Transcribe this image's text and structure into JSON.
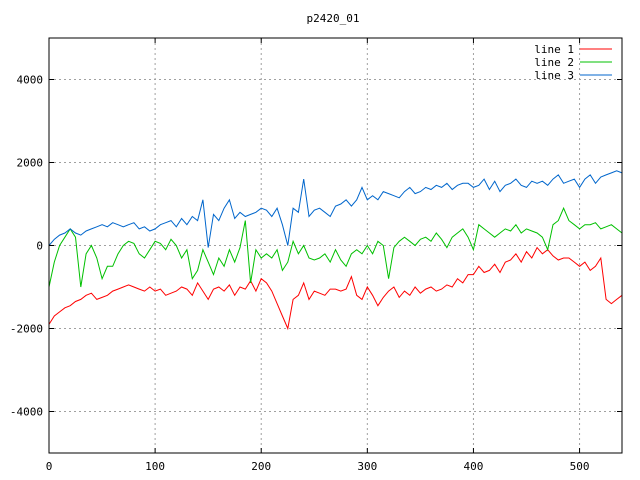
{
  "chart_data": {
    "type": "line",
    "title": "p2420_01",
    "xlabel": "",
    "ylabel": "",
    "xlim": [
      0,
      540
    ],
    "ylim": [
      -5000,
      5000
    ],
    "x_ticks": [
      0,
      100,
      200,
      300,
      400,
      500
    ],
    "y_ticks": [
      -4000,
      -2000,
      0,
      2000,
      4000
    ],
    "grid": true,
    "legend_position": "top-right",
    "series": [
      {
        "name": "line 1",
        "color": "#ff0000",
        "x": [
          0,
          5,
          10,
          15,
          20,
          25,
          30,
          35,
          40,
          45,
          50,
          55,
          60,
          65,
          70,
          75,
          80,
          85,
          90,
          95,
          100,
          105,
          110,
          115,
          120,
          125,
          130,
          135,
          140,
          145,
          150,
          155,
          160,
          165,
          170,
          175,
          180,
          185,
          190,
          195,
          200,
          205,
          210,
          215,
          220,
          225,
          230,
          235,
          240,
          245,
          250,
          255,
          260,
          265,
          270,
          275,
          280,
          285,
          290,
          295,
          300,
          305,
          310,
          315,
          320,
          325,
          330,
          335,
          340,
          345,
          350,
          355,
          360,
          365,
          370,
          375,
          380,
          385,
          390,
          395,
          400,
          405,
          410,
          415,
          420,
          425,
          430,
          435,
          440,
          445,
          450,
          455,
          460,
          465,
          470,
          475,
          480,
          485,
          490,
          495,
          500,
          505,
          510,
          515,
          520,
          525,
          530,
          535,
          540
        ],
        "y": [
          -1900,
          -1700,
          -1600,
          -1500,
          -1450,
          -1350,
          -1300,
          -1200,
          -1150,
          -1300,
          -1250,
          -1200,
          -1100,
          -1050,
          -1000,
          -950,
          -1000,
          -1050,
          -1100,
          -1000,
          -1100,
          -1050,
          -1200,
          -1150,
          -1100,
          -1000,
          -1050,
          -1200,
          -900,
          -1100,
          -1300,
          -1050,
          -1000,
          -1100,
          -950,
          -1200,
          -1000,
          -1050,
          -850,
          -1100,
          -800,
          -900,
          -1100,
          -1400,
          -1700,
          -2000,
          -1300,
          -1200,
          -900,
          -1300,
          -1100,
          -1150,
          -1200,
          -1050,
          -1050,
          -1100,
          -1050,
          -750,
          -1200,
          -1300,
          -1000,
          -1200,
          -1450,
          -1250,
          -1100,
          -1000,
          -1250,
          -1100,
          -1200,
          -1000,
          -1150,
          -1050,
          -1000,
          -1100,
          -1050,
          -950,
          -1000,
          -800,
          -900,
          -700,
          -700,
          -500,
          -650,
          -600,
          -450,
          -650,
          -400,
          -350,
          -200,
          -400,
          -150,
          -300,
          -50,
          -200,
          -100,
          -250,
          -350,
          -300,
          -300,
          -400,
          -500,
          -400,
          -600,
          -500,
          -300,
          -1300,
          -1400,
          -1300,
          -1200
        ]
      },
      {
        "name": "line 2",
        "color": "#00c000",
        "x": [
          0,
          5,
          10,
          15,
          20,
          25,
          30,
          35,
          40,
          45,
          50,
          55,
          60,
          65,
          70,
          75,
          80,
          85,
          90,
          95,
          100,
          105,
          110,
          115,
          120,
          125,
          130,
          135,
          140,
          145,
          150,
          155,
          160,
          165,
          170,
          175,
          180,
          185,
          190,
          195,
          200,
          205,
          210,
          215,
          220,
          225,
          230,
          235,
          240,
          245,
          250,
          255,
          260,
          265,
          270,
          275,
          280,
          285,
          290,
          295,
          300,
          305,
          310,
          315,
          320,
          325,
          330,
          335,
          340,
          345,
          350,
          355,
          360,
          365,
          370,
          375,
          380,
          385,
          390,
          395,
          400,
          405,
          410,
          415,
          420,
          425,
          430,
          435,
          440,
          445,
          450,
          455,
          460,
          465,
          470,
          475,
          480,
          485,
          490,
          495,
          500,
          505,
          510,
          515,
          520,
          525,
          530,
          535,
          540
        ],
        "y": [
          -1000,
          -400,
          0,
          200,
          400,
          200,
          -1000,
          -200,
          0,
          -300,
          -800,
          -500,
          -500,
          -200,
          0,
          100,
          50,
          -200,
          -300,
          -100,
          100,
          50,
          -100,
          150,
          0,
          -300,
          -100,
          -800,
          -600,
          -100,
          -400,
          -700,
          -300,
          -500,
          -100,
          -400,
          -50,
          600,
          -900,
          -100,
          -300,
          -200,
          -300,
          -100,
          -600,
          -400,
          100,
          -200,
          0,
          -300,
          -350,
          -300,
          -200,
          -400,
          -100,
          -350,
          -500,
          -200,
          -100,
          -200,
          0,
          -200,
          100,
          0,
          -800,
          -50,
          100,
          200,
          100,
          0,
          150,
          200,
          100,
          300,
          150,
          -50,
          200,
          300,
          400,
          200,
          -100,
          500,
          400,
          300,
          200,
          300,
          400,
          350,
          500,
          300,
          400,
          350,
          300,
          200,
          -100,
          500,
          600,
          900,
          600,
          500,
          400,
          500,
          500,
          550,
          400,
          450,
          500,
          400,
          300
        ]
      },
      {
        "name": "line 3",
        "color": "#0066cc",
        "x": [
          0,
          5,
          10,
          15,
          20,
          25,
          30,
          35,
          40,
          45,
          50,
          55,
          60,
          65,
          70,
          75,
          80,
          85,
          90,
          95,
          100,
          105,
          110,
          115,
          120,
          125,
          130,
          135,
          140,
          145,
          150,
          155,
          160,
          165,
          170,
          175,
          180,
          185,
          190,
          195,
          200,
          205,
          210,
          215,
          220,
          225,
          230,
          235,
          240,
          245,
          250,
          255,
          260,
          265,
          270,
          275,
          280,
          285,
          290,
          295,
          300,
          305,
          310,
          315,
          320,
          325,
          330,
          335,
          340,
          345,
          350,
          355,
          360,
          365,
          370,
          375,
          380,
          385,
          390,
          395,
          400,
          405,
          410,
          415,
          420,
          425,
          430,
          435,
          440,
          445,
          450,
          455,
          460,
          465,
          470,
          475,
          480,
          485,
          490,
          495,
          500,
          505,
          510,
          515,
          520,
          525,
          530,
          535,
          540
        ],
        "y": [
          0,
          150,
          250,
          300,
          400,
          300,
          250,
          350,
          400,
          450,
          500,
          450,
          550,
          500,
          450,
          500,
          550,
          400,
          450,
          350,
          400,
          500,
          550,
          600,
          450,
          650,
          500,
          700,
          600,
          1100,
          -50,
          750,
          600,
          900,
          1100,
          650,
          800,
          700,
          750,
          800,
          900,
          850,
          700,
          900,
          500,
          0,
          900,
          800,
          1600,
          700,
          850,
          900,
          800,
          700,
          950,
          1000,
          1100,
          950,
          1100,
          1400,
          1100,
          1200,
          1100,
          1300,
          1250,
          1200,
          1150,
          1300,
          1400,
          1250,
          1300,
          1400,
          1350,
          1450,
          1400,
          1500,
          1350,
          1450,
          1500,
          1500,
          1400,
          1450,
          1600,
          1350,
          1550,
          1300,
          1450,
          1500,
          1600,
          1450,
          1400,
          1550,
          1500,
          1550,
          1450,
          1600,
          1700,
          1500,
          1550,
          1600,
          1400,
          1600,
          1700,
          1500,
          1650,
          1700,
          1750,
          1800,
          1750
        ]
      }
    ]
  }
}
